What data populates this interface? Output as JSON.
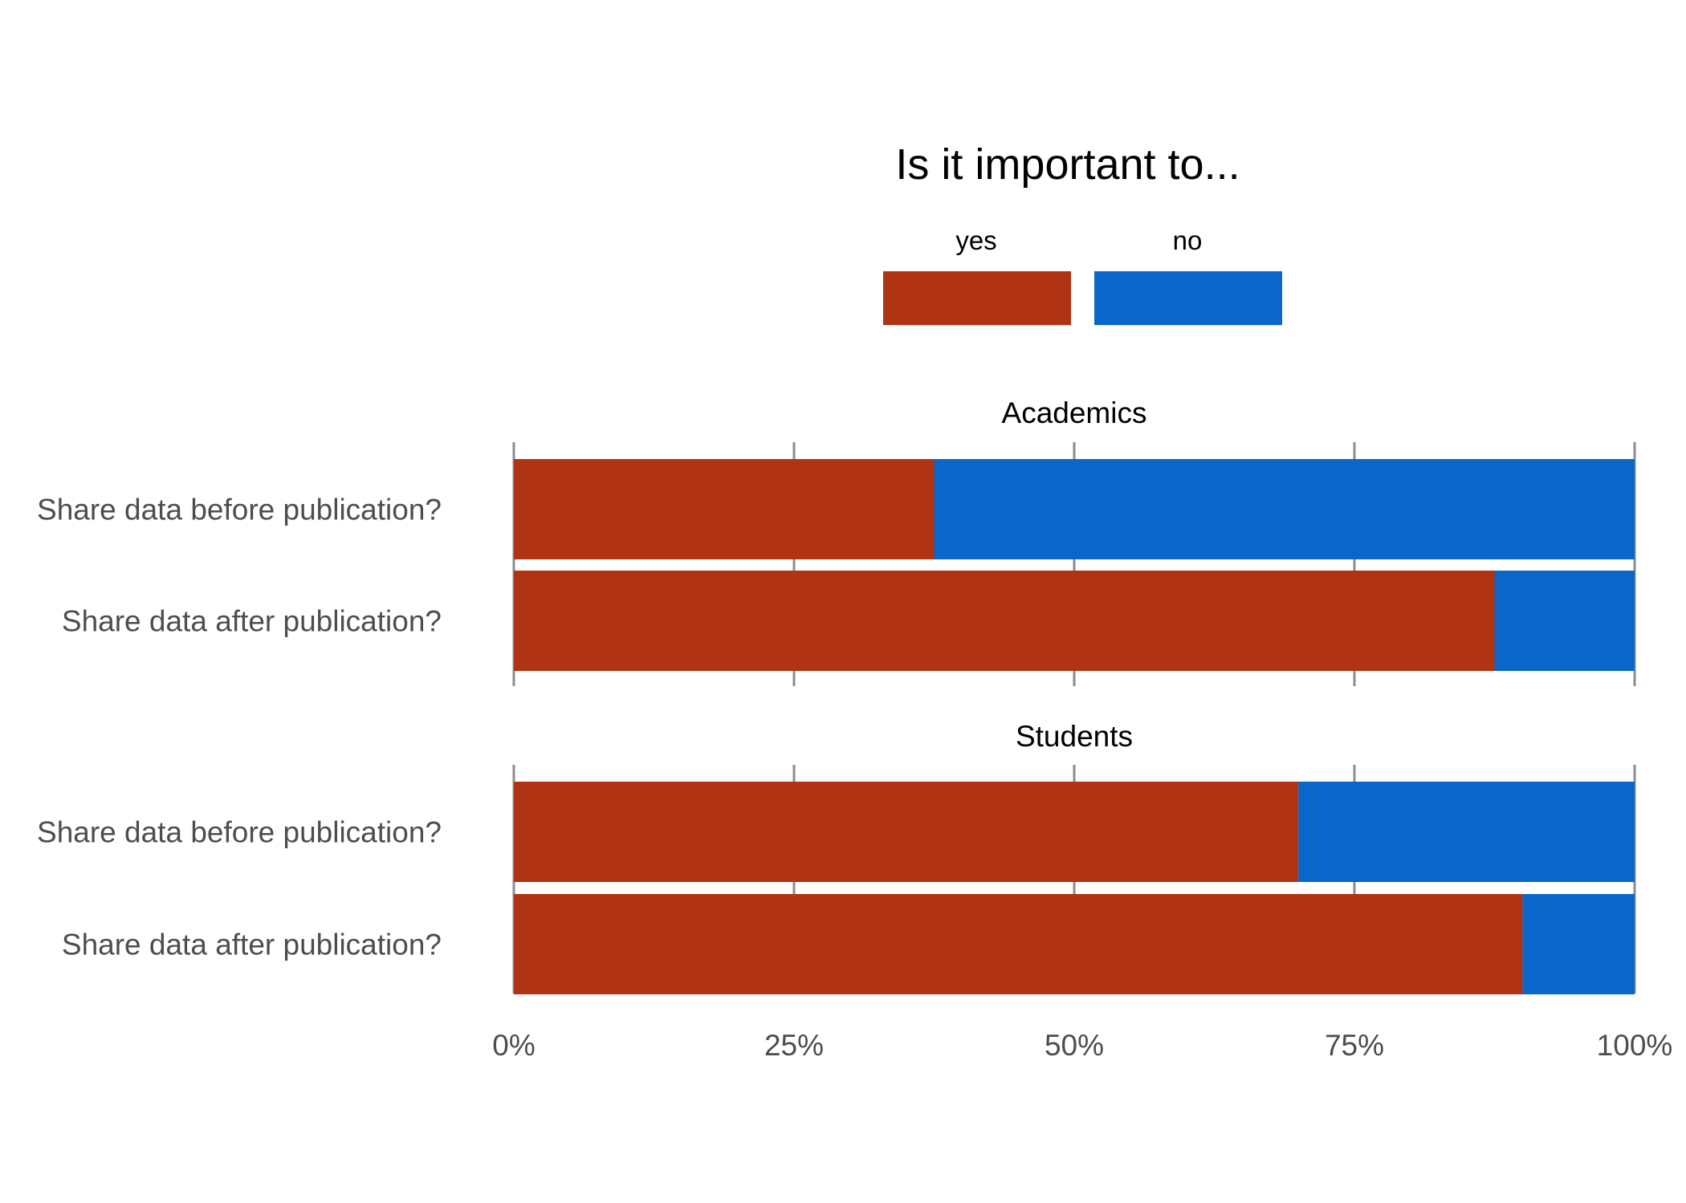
{
  "chart_data": {
    "type": "bar",
    "orientation": "horizontal",
    "stacked": "percent",
    "title": "Is it important to...",
    "legend": {
      "placement": "top",
      "entries": [
        {
          "name": "yes",
          "color": "#b03413"
        },
        {
          "name": "no",
          "color": "#0a66c8"
        }
      ]
    },
    "xlim": [
      0,
      100
    ],
    "x_ticks": [
      "0%",
      "25%",
      "50%",
      "75%",
      "100%"
    ],
    "x_tick_values": [
      0,
      25,
      50,
      75,
      100
    ],
    "grid": true,
    "facets": [
      {
        "name": "Academics",
        "categories": [
          "Share data before publication?",
          "Share data after publication?"
        ],
        "series": [
          {
            "name": "yes",
            "values": [
              37.5,
              87.5
            ]
          },
          {
            "name": "no",
            "values": [
              62.5,
              12.5
            ]
          }
        ]
      },
      {
        "name": "Students",
        "categories": [
          "Share data before publication?",
          "Share data after publication?"
        ],
        "series": [
          {
            "name": "yes",
            "values": [
              70,
              90
            ]
          },
          {
            "name": "no",
            "values": [
              30,
              10
            ]
          }
        ]
      }
    ]
  }
}
